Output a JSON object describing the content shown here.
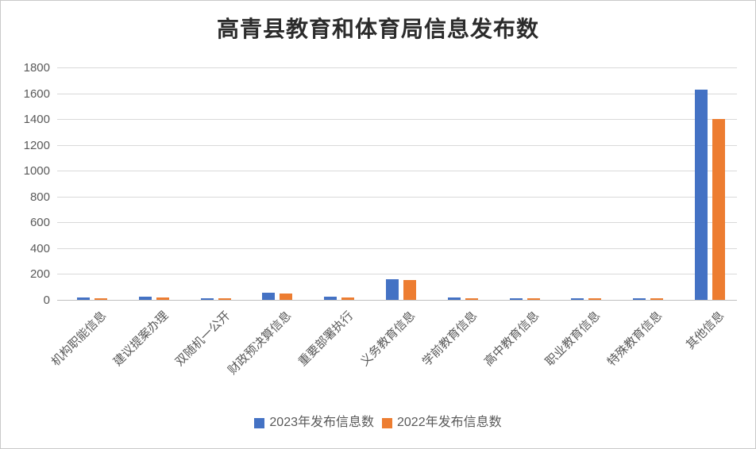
{
  "page": {
    "title": "高青县教育和体育局信息发布数"
  },
  "colors": {
    "series_2023": "#4472c4",
    "series_2022": "#ed7d31",
    "gridline": "#d9d9d9",
    "axis_line": "#bfbfbf",
    "tick_text": "#595959",
    "title_text": "#2b2b2b",
    "background": "#ffffff"
  },
  "chart_data": {
    "type": "bar",
    "title": "高青县教育和体育局信息发布数",
    "xlabel": "",
    "ylabel": "",
    "ylim": [
      0,
      1800
    ],
    "ytick_step": 200,
    "yticks": [
      0,
      200,
      400,
      600,
      800,
      1000,
      1200,
      1400,
      1600,
      1800
    ],
    "grid": true,
    "legend_position": "bottom",
    "categories": [
      "机构职能信息",
      "建议提案办理",
      "双随机一公开",
      "财政预决算信息",
      "重要部署执行",
      "义务教育信息",
      "学前教育信息",
      "高中教育信息",
      "职业教育信息",
      "特殊教育信息",
      "其他信息"
    ],
    "series": [
      {
        "name": "2023年发布信息数",
        "color": "#4472c4",
        "values": [
          20,
          22,
          12,
          55,
          22,
          160,
          20,
          12,
          12,
          14,
          1630
        ]
      },
      {
        "name": "2022年发布信息数",
        "color": "#ed7d31",
        "values": [
          10,
          18,
          10,
          50,
          18,
          155,
          10,
          12,
          10,
          10,
          1400
        ]
      }
    ]
  },
  "layout_note": ""
}
